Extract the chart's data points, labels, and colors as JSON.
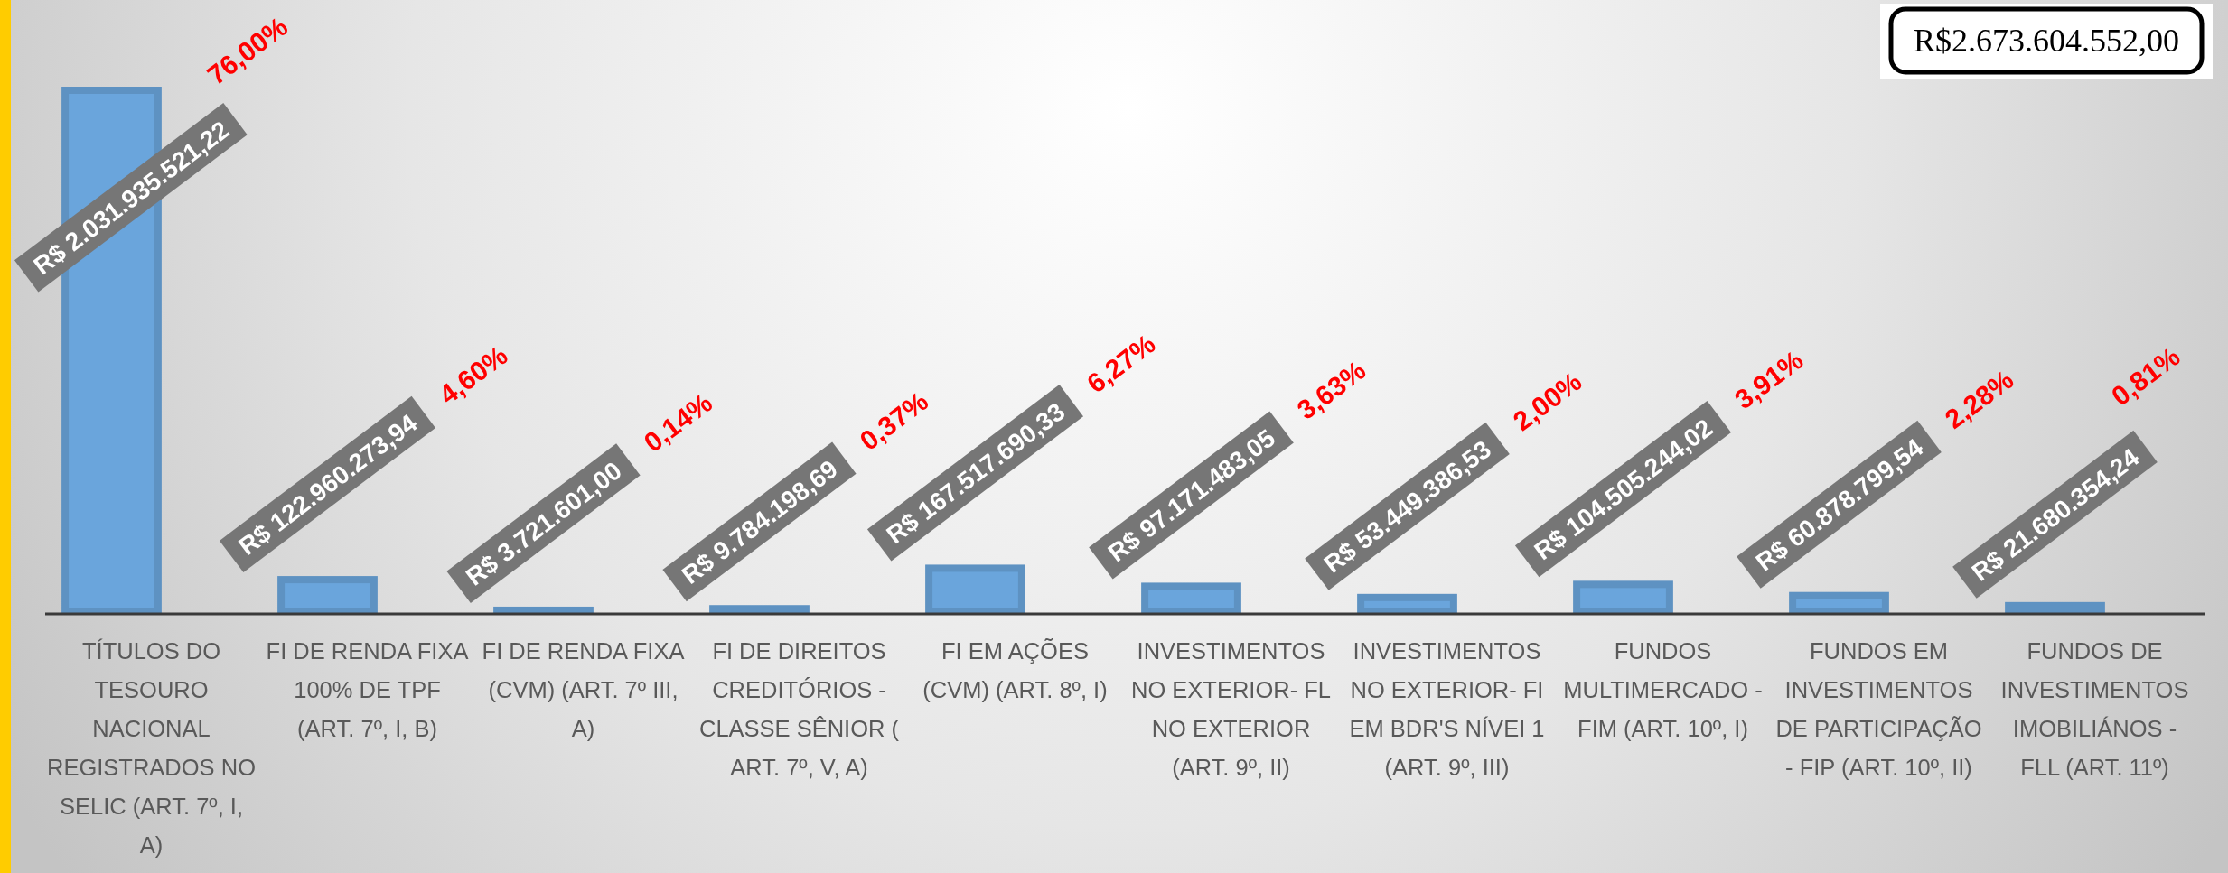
{
  "chart_data": {
    "type": "bar",
    "categories": [
      "TÍTULOS DO TESOURO NACIONAL REGISTRADOS NO SELIC (ART. 7º, I, A)",
      "FI DE RENDA FIXA 100% DE TPF (ART. 7º, I, B)",
      "FI DE RENDA FIXA (CVM) (ART. 7º III, A)",
      "FI DE DIREITOS CREDITÓRIOS - CLASSE SÊNIOR ( ART. 7º, V, A)",
      "FI EM AÇÕES (CVM) (ART. 8º, I)",
      "INVESTIMENTOS NO EXTERIOR- FL NO EXTERIOR (ART. 9º, II)",
      "INVESTIMENTOS NO EXTERIOR- FI EM BDR'S NÍVEI 1 (ART. 9º, III)",
      "FUNDOS MULTIMERCADO - FIM (ART. 10º, I)",
      "FUNDOS EM INVESTIMENTOS DE PARTICIPAÇÃO - FIP (ART. 10º, II)",
      "FUNDOS DE INVESTIMENTOS IMOBILIÁNOS - FLL (ART. 11º)"
    ],
    "values": [
      2031935521.22,
      122960273.94,
      3721601.0,
      9784198.69,
      167517690.33,
      97171483.05,
      53449386.53,
      104505244.02,
      60878799.54,
      21680354.24
    ],
    "color": "#6aa5dc",
    "value_labels": [
      "R$ 2.031.935.521,22",
      "R$ 122.960.273,94",
      "R$ 3.721.601,00",
      "R$ 9.784.198,69",
      "R$ 167.517.690,33",
      "R$ 97.171.483,05",
      "R$ 53.449.386,53",
      "R$ 104.505.244,02",
      "R$ 60.878.799,54",
      "R$ 21.680.354,24"
    ],
    "annotations": [
      "76,00%",
      "4,60%",
      "0,14%",
      "0,37%",
      "6,27%",
      "3,63%",
      "2,00%",
      "3,91%",
      "2,28%",
      "0,81%",
      "R$2.673.604.552,00"
    ]
  }
}
